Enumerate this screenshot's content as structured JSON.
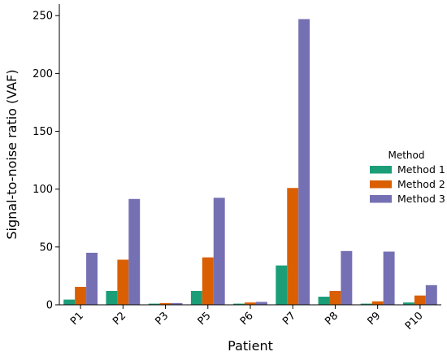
{
  "chart_data": {
    "type": "bar",
    "xlabel": "Patient",
    "ylabel": "Signal-to-noise ratio (VAF)",
    "categories": [
      "P1",
      "P2",
      "P3",
      "P5",
      "P6",
      "P7",
      "P8",
      "P9",
      "P10"
    ],
    "ylim": [
      0,
      260
    ],
    "yticks": [
      0,
      50,
      100,
      150,
      200,
      250
    ],
    "legend": {
      "title": "Method",
      "placement": "right"
    },
    "grid": false,
    "series": [
      {
        "name": "Method 1",
        "color": "#1b9e77",
        "values": [
          4.5,
          12,
          1,
          12,
          1,
          34,
          7,
          1,
          2
        ]
      },
      {
        "name": "Method 2",
        "color": "#d95f02",
        "values": [
          15.5,
          39,
          1.5,
          41,
          2,
          101,
          12,
          3,
          8
        ]
      },
      {
        "name": "Method 3",
        "color": "#7570b3",
        "values": [
          45,
          91.5,
          1.5,
          92.5,
          2.5,
          247,
          46.5,
          46,
          17
        ]
      }
    ]
  }
}
